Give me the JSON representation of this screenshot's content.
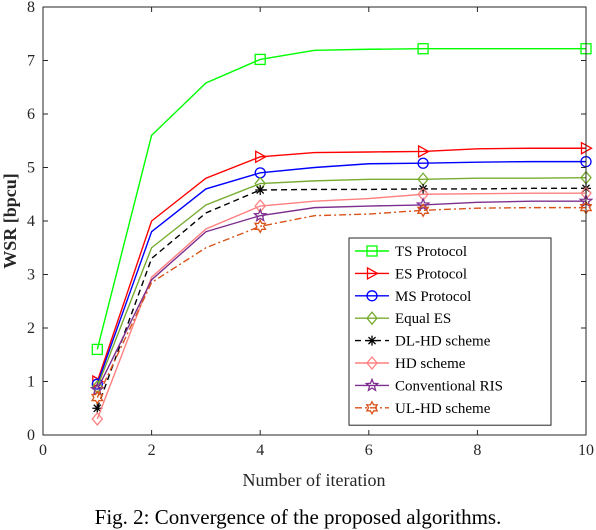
{
  "caption": "Fig. 2: Convergence of the proposed algorithms.",
  "chart_data": {
    "type": "line",
    "xlabel": "Number of iteration",
    "ylabel": "WSR [bpcu]",
    "xlim": [
      0,
      10
    ],
    "ylim": [
      0,
      8
    ],
    "xticks": [
      0,
      2,
      4,
      6,
      8,
      10
    ],
    "yticks": [
      0,
      1,
      2,
      3,
      4,
      5,
      6,
      7,
      8
    ],
    "grid": false,
    "legend_position": "bottom-right",
    "x": [
      1,
      2,
      3,
      4,
      5,
      6,
      7,
      8,
      9,
      10
    ],
    "series": [
      {
        "name": "TS Protocol",
        "color": "#00ff00",
        "marker": "square",
        "line": "solid",
        "marker_at": [
          1,
          4,
          7,
          10
        ],
        "values": [
          1.6,
          5.6,
          6.58,
          7.02,
          7.19,
          7.21,
          7.22,
          7.22,
          7.22,
          7.22
        ]
      },
      {
        "name": "ES Protocol",
        "color": "#ff0000",
        "marker": "triangle-right",
        "line": "solid",
        "marker_at": [
          1,
          4,
          7,
          10
        ],
        "values": [
          1.0,
          4.0,
          4.8,
          5.2,
          5.28,
          5.29,
          5.3,
          5.35,
          5.36,
          5.36
        ]
      },
      {
        "name": "MS Protocol",
        "color": "#0000ff",
        "marker": "circle",
        "line": "solid",
        "marker_at": [
          1,
          4,
          7,
          10
        ],
        "values": [
          0.95,
          3.8,
          4.6,
          4.9,
          5.0,
          5.07,
          5.08,
          5.1,
          5.11,
          5.11
        ]
      },
      {
        "name": "Equal ES",
        "color": "#77ac30",
        "marker": "diamond",
        "line": "solid",
        "marker_at": [
          1,
          4,
          7,
          10
        ],
        "values": [
          0.9,
          3.5,
          4.3,
          4.7,
          4.75,
          4.78,
          4.78,
          4.8,
          4.8,
          4.81
        ]
      },
      {
        "name": "DL-HD scheme",
        "color": "#000000",
        "marker": "asterisk",
        "line": "dashed",
        "marker_at": [
          1,
          4,
          7,
          10
        ],
        "values": [
          0.5,
          3.3,
          4.15,
          4.58,
          4.59,
          4.59,
          4.6,
          4.6,
          4.61,
          4.61
        ]
      },
      {
        "name": "HD scheme",
        "color": "#ff8080",
        "marker": "diamond",
        "line": "solid",
        "marker_at": [
          1,
          4,
          7,
          10
        ],
        "values": [
          0.3,
          2.95,
          3.85,
          4.28,
          4.37,
          4.42,
          4.5,
          4.51,
          4.52,
          4.52
        ]
      },
      {
        "name": "Conventional RIS",
        "color": "#7e2f8e",
        "marker": "star",
        "line": "solid",
        "marker_at": [
          1,
          4,
          7,
          10
        ],
        "values": [
          0.85,
          2.9,
          3.8,
          4.1,
          4.25,
          4.28,
          4.3,
          4.35,
          4.37,
          4.37
        ]
      },
      {
        "name": "UL-HD scheme",
        "color": "#d95319",
        "marker": "hexagram",
        "line": "dashdot",
        "marker_at": [
          1,
          4,
          7,
          10
        ],
        "values": [
          0.7,
          2.85,
          3.5,
          3.9,
          4.1,
          4.13,
          4.2,
          4.24,
          4.25,
          4.25
        ]
      }
    ]
  }
}
